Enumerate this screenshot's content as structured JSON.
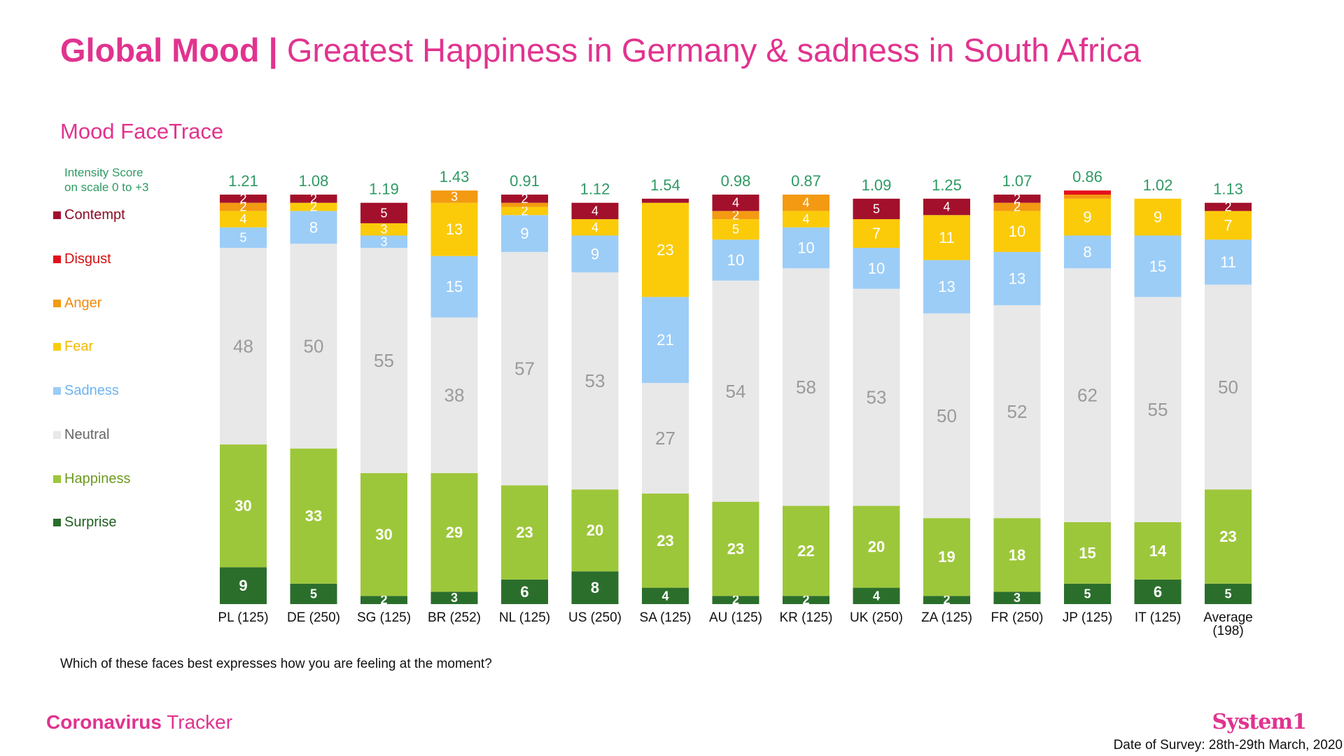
{
  "header": {
    "title_bold": "Global Mood |",
    "title_rest": "Greatest Happiness in Germany & sadness in South Africa",
    "subtitle": "Mood FaceTrace",
    "intensity_line1": "Intensity Score",
    "intensity_line2": "on scale 0 to +3"
  },
  "question": "Which of these faces best expresses how you are feeling at the moment?",
  "footer": {
    "brand_bold": "Coronavirus",
    "brand_rest": "Tracker",
    "logo": "System1",
    "survey_date": "Date of Survey: 28th-29th March, 2020"
  },
  "colors": {
    "Contempt": "#a3102c",
    "Disgust": "#e3101c",
    "Anger": "#f39a12",
    "Fear": "#fbcb0a",
    "Sadness": "#9ccdf7",
    "Neutral": "#e8e8e8",
    "Happiness": "#9dc73a",
    "Surprise": "#2b6e2c",
    "legend_text_Contempt": "#8c0c25",
    "legend_text_Disgust": "#d41010",
    "legend_text_Anger": "#f08a0a",
    "legend_text_Fear": "#f2b800",
    "legend_text_Sadness": "#6fb4ee",
    "legend_text_Neutral": "#666666",
    "legend_text_Happiness": "#6d9a20",
    "legend_text_Surprise": "#1f5e20",
    "intensity": "#2e9a63",
    "brand": "#e1338f"
  },
  "legend": [
    "Contempt",
    "Disgust",
    "Anger",
    "Fear",
    "Sadness",
    "Neutral",
    "Happiness",
    "Surprise"
  ],
  "chart_data": {
    "type": "bar",
    "stacked": true,
    "orientation": "vertical",
    "ylim": [
      0,
      100
    ],
    "unit": "%",
    "categories": [
      "PL (125)",
      "DE (250)",
      "SG (125)",
      "BR (252)",
      "NL (125)",
      "US (250)",
      "SA (125)",
      "AU (125)",
      "KR (125)",
      "UK (250)",
      "ZA (125)",
      "FR (250)",
      "JP (125)",
      "IT (125)",
      "Average (198)"
    ],
    "intensity_scores": [
      "1.21",
      "1.08",
      "1.19",
      "1.43",
      "0.91",
      "1.12",
      "1.54",
      "0.98",
      "0.87",
      "1.09",
      "1.25",
      "1.07",
      "0.86",
      "1.02",
      "1.13"
    ],
    "series": [
      {
        "name": "Surprise",
        "values": [
          9,
          5,
          2,
          3,
          6,
          8,
          4,
          2,
          2,
          4,
          2,
          3,
          5,
          6,
          5
        ]
      },
      {
        "name": "Happiness",
        "values": [
          30,
          33,
          30,
          29,
          23,
          20,
          23,
          23,
          22,
          20,
          19,
          18,
          15,
          14,
          23
        ]
      },
      {
        "name": "Neutral",
        "values": [
          48,
          50,
          55,
          38,
          57,
          53,
          27,
          54,
          58,
          53,
          50,
          52,
          62,
          55,
          50
        ]
      },
      {
        "name": "Sadness",
        "values": [
          5,
          8,
          3,
          15,
          9,
          9,
          21,
          10,
          10,
          10,
          13,
          13,
          8,
          15,
          11
        ]
      },
      {
        "name": "Fear",
        "values": [
          4,
          2,
          3,
          13,
          2,
          4,
          23,
          5,
          4,
          7,
          11,
          10,
          9,
          9,
          7
        ]
      },
      {
        "name": "Anger",
        "values": [
          2,
          0,
          0,
          3,
          1,
          0,
          0,
          2,
          4,
          0,
          0,
          2,
          1,
          0,
          0
        ]
      },
      {
        "name": "Disgust",
        "values": [
          0,
          0,
          0,
          0,
          0,
          0,
          0,
          0,
          0,
          0,
          0,
          0,
          1,
          0,
          0
        ]
      },
      {
        "name": "Contempt",
        "values": [
          2,
          2,
          5,
          0,
          2,
          4,
          1,
          4,
          0,
          5,
          4,
          2,
          0,
          0,
          2
        ]
      }
    ]
  }
}
